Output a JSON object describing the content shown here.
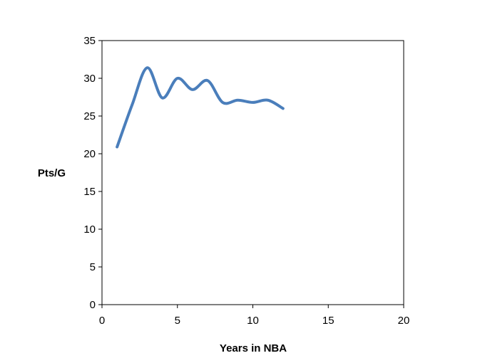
{
  "chart_data": {
    "type": "line",
    "title": "",
    "xlabel": "Years in NBA",
    "ylabel": "Pts/G",
    "xlim": [
      0,
      20
    ],
    "ylim": [
      0,
      35
    ],
    "x_ticks": [
      0,
      5,
      10,
      15,
      20
    ],
    "y_ticks": [
      0,
      5,
      10,
      15,
      20,
      25,
      30,
      35
    ],
    "grid": false,
    "legend": "none",
    "smooth": true,
    "series": [
      {
        "color": "#4a7ebb",
        "x": [
          1,
          2,
          3,
          4,
          5,
          6,
          7,
          8,
          9,
          10,
          11,
          12
        ],
        "y": [
          20.9,
          26.5,
          31.4,
          27.4,
          30.0,
          28.5,
          29.7,
          26.8,
          27.1,
          26.8,
          27.1,
          26.0
        ]
      }
    ]
  }
}
